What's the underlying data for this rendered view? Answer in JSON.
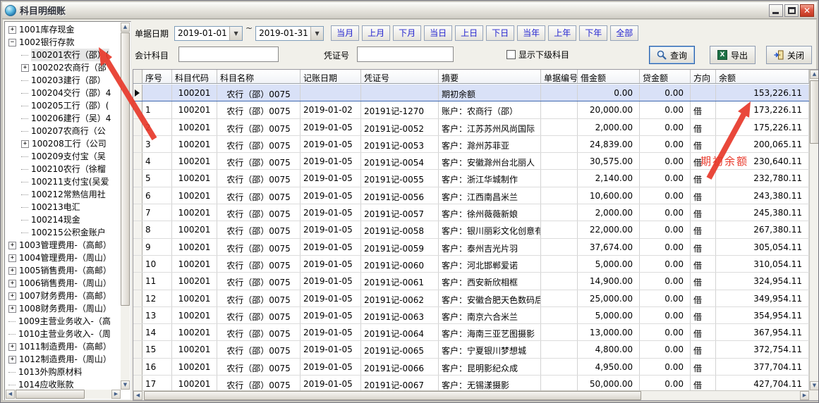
{
  "window": {
    "title": "科目明细账",
    "controls": [
      {
        "name": "minimize",
        "icon": "minimize-icon"
      },
      {
        "name": "maximize",
        "icon": "maximize-icon"
      },
      {
        "name": "close",
        "icon": "close-icon",
        "glyph": "X"
      }
    ]
  },
  "tree": {
    "items": [
      {
        "label": "1001库存现金",
        "box": "+",
        "level": 0
      },
      {
        "label": "1002银行存款",
        "box": "-",
        "level": 0
      },
      {
        "label": "100201农行（邵）(",
        "box": null,
        "level": 1,
        "selected": true
      },
      {
        "label": "100202农商行（邵",
        "box": "+",
        "level": 1
      },
      {
        "label": "100203建行（邵）",
        "box": null,
        "level": 1
      },
      {
        "label": "100204交行（邵）4",
        "box": null,
        "level": 1
      },
      {
        "label": "100205工行（邵）(",
        "box": null,
        "level": 1
      },
      {
        "label": "100206建行（吴）4",
        "box": null,
        "level": 1
      },
      {
        "label": "100207农商行（公",
        "box": null,
        "level": 1
      },
      {
        "label": "100208工行（公司",
        "box": "+",
        "level": 1
      },
      {
        "label": "100209支付宝（吴",
        "box": null,
        "level": 1
      },
      {
        "label": "100210农行（徐榴",
        "box": null,
        "level": 1
      },
      {
        "label": "100211支付宝(吴爱",
        "box": null,
        "level": 1
      },
      {
        "label": "100212常熟信用社",
        "box": null,
        "level": 1
      },
      {
        "label": "100213电汇",
        "box": null,
        "level": 1
      },
      {
        "label": "100214现金",
        "box": null,
        "level": 1
      },
      {
        "label": "100215公积金账户",
        "box": null,
        "level": 1
      },
      {
        "label": "1003管理费用-（高邮）",
        "box": "+",
        "level": 0
      },
      {
        "label": "1004管理费用-（周山）",
        "box": "+",
        "level": 0
      },
      {
        "label": "1005销售费用-（高邮）",
        "box": "+",
        "level": 0
      },
      {
        "label": "1006销售费用-（周山）",
        "box": "+",
        "level": 0
      },
      {
        "label": "1007财务费用-（高邮）",
        "box": "+",
        "level": 0
      },
      {
        "label": "1008财务费用-（周山）",
        "box": "+",
        "level": 0
      },
      {
        "label": "1009主营业务收入-（高",
        "box": null,
        "level": 0
      },
      {
        "label": "1010主营业务收入-（周",
        "box": null,
        "level": 0
      },
      {
        "label": "1011制造费用-（高邮）",
        "box": "+",
        "level": 0
      },
      {
        "label": "1012制造费用-（周山）",
        "box": "+",
        "level": 0
      },
      {
        "label": "1013外购原材料",
        "box": null,
        "level": 0
      },
      {
        "label": "1014应收账款",
        "box": null,
        "level": 0
      }
    ]
  },
  "filters": {
    "date_label": "单据日期",
    "date_from": "2019-01-01",
    "date_to": "2019-01-31",
    "tilde": "~",
    "range_buttons": [
      "当月",
      "上月",
      "下月",
      "当日",
      "上日",
      "下日",
      "当年",
      "上年",
      "下年",
      "全部"
    ],
    "subject_label": "会计科目",
    "subject_value": "",
    "voucher_label": "凭证号",
    "voucher_value": "",
    "show_sub_label": "显示下级科目",
    "show_sub_checked": false,
    "actions": [
      {
        "label": "查询",
        "icon": "magnifier-icon"
      },
      {
        "label": "导出",
        "icon": "excel-icon"
      },
      {
        "label": "关闭",
        "icon": "exit-door-icon"
      }
    ]
  },
  "table": {
    "columns": [
      "序号",
      "科目代码",
      "科目名称",
      "记账日期",
      "凭证号",
      "摘要",
      "单据编号",
      "借金额",
      "贷金额",
      "方向",
      "余额"
    ],
    "selected_row_index": 0,
    "rows": [
      [
        "",
        "100201",
        "农行（邵）0075",
        "",
        "",
        "期初余额",
        "",
        "0.00",
        "0.00",
        "",
        "153,226.11"
      ],
      [
        "1",
        "100201",
        "农行（邵）0075",
        "2019-01-02",
        "20191记-1270",
        "账户：农商行（邵）",
        "",
        "20,000.00",
        "0.00",
        "借",
        "173,226.11"
      ],
      [
        "2",
        "100201",
        "农行（邵）0075",
        "2019-01-05",
        "20191记-0052",
        "客户：江苏苏州风尚国际",
        "",
        "2,000.00",
        "0.00",
        "借",
        "175,226.11"
      ],
      [
        "3",
        "100201",
        "农行（邵）0075",
        "2019-01-05",
        "20191记-0053",
        "客户：滁州苏菲亚",
        "",
        "24,839.00",
        "0.00",
        "借",
        "200,065.11"
      ],
      [
        "4",
        "100201",
        "农行（邵）0075",
        "2019-01-05",
        "20191记-0054",
        "客户：安徽滁州台北丽人",
        "",
        "30,575.00",
        "0.00",
        "借",
        "230,640.11"
      ],
      [
        "5",
        "100201",
        "农行（邵）0075",
        "2019-01-05",
        "20191记-0055",
        "客户：浙江华城制作",
        "",
        "2,140.00",
        "0.00",
        "借",
        "232,780.11"
      ],
      [
        "6",
        "100201",
        "农行（邵）0075",
        "2019-01-05",
        "20191记-0056",
        "客户：江西南昌米兰",
        "",
        "10,600.00",
        "0.00",
        "借",
        "243,380.11"
      ],
      [
        "7",
        "100201",
        "农行（邵）0075",
        "2019-01-05",
        "20191记-0057",
        "客户：徐州薇薇新娘",
        "",
        "2,000.00",
        "0.00",
        "借",
        "245,380.11"
      ],
      [
        "8",
        "100201",
        "农行（邵）0075",
        "2019-01-05",
        "20191记-0058",
        "客户：银川丽彩文化创意有",
        "",
        "22,000.00",
        "0.00",
        "借",
        "267,380.11"
      ],
      [
        "9",
        "100201",
        "农行（邵）0075",
        "2019-01-05",
        "20191记-0059",
        "客户：泰州吉光片羽",
        "",
        "37,674.00",
        "0.00",
        "借",
        "305,054.11"
      ],
      [
        "10",
        "100201",
        "农行（邵）0075",
        "2019-01-05",
        "20191记-0060",
        "客户：河北邯郸爱诺",
        "",
        "5,000.00",
        "0.00",
        "借",
        "310,054.11"
      ],
      [
        "11",
        "100201",
        "农行（邵）0075",
        "2019-01-05",
        "20191记-0061",
        "客户：西安新欣相框",
        "",
        "14,900.00",
        "0.00",
        "借",
        "324,954.11"
      ],
      [
        "12",
        "100201",
        "农行（邵）0075",
        "2019-01-05",
        "20191记-0062",
        "客户：安徽合肥天色数码后",
        "",
        "25,000.00",
        "0.00",
        "借",
        "349,954.11"
      ],
      [
        "13",
        "100201",
        "农行（邵）0075",
        "2019-01-05",
        "20191记-0063",
        "客户：南京六合米兰",
        "",
        "5,000.00",
        "0.00",
        "借",
        "354,954.11"
      ],
      [
        "14",
        "100201",
        "农行（邵）0075",
        "2019-01-05",
        "20191记-0064",
        "客户：海南三亚艺图摄影",
        "",
        "13,000.00",
        "0.00",
        "借",
        "367,954.11"
      ],
      [
        "15",
        "100201",
        "农行（邵）0075",
        "2019-01-05",
        "20191记-0065",
        "客户：宁夏银川梦想城",
        "",
        "4,800.00",
        "0.00",
        "借",
        "372,754.11"
      ],
      [
        "16",
        "100201",
        "农行（邵）0075",
        "2019-01-05",
        "20191记-0066",
        "客户：昆明影纪众成",
        "",
        "4,950.00",
        "0.00",
        "借",
        "377,704.11"
      ],
      [
        "17",
        "100201",
        "农行（邵）0075",
        "2019-01-05",
        "20191记-0067",
        "客户：无锡漾摄影",
        "",
        "50,000.00",
        "0.00",
        "借",
        "427,704.11"
      ]
    ]
  },
  "annotations": {
    "initial_balance_label": "期初余额",
    "arrow_color": "#e8392b"
  }
}
